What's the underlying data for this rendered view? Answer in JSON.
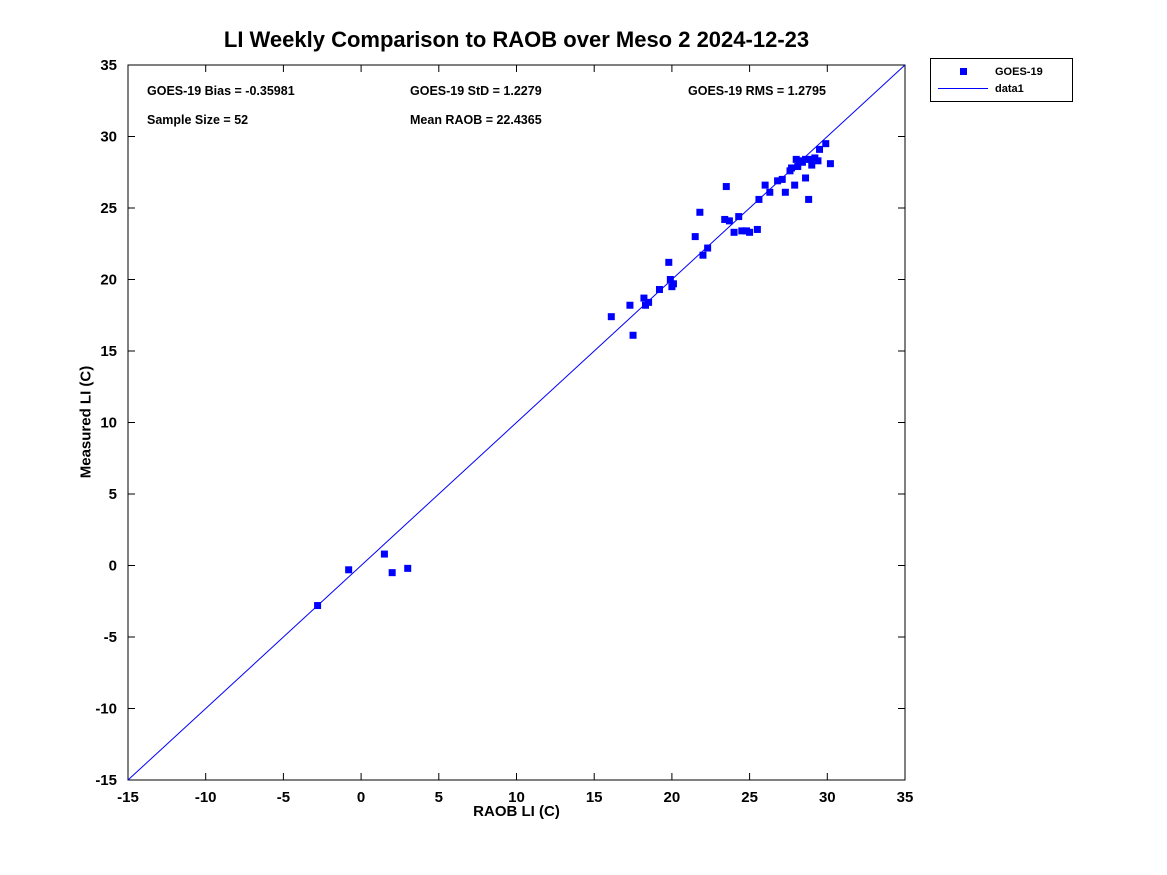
{
  "figure": {
    "title": "LI Weekly Comparison to RAOB over Meso 2 2024-12-23",
    "xlabel": "RAOB LI (C)",
    "ylabel": "Measured LI (C)"
  },
  "annotations": {
    "bias": "GOES-19 Bias = -0.35981",
    "std": "GOES-19 StD = 1.2279",
    "rms": "GOES-19 RMS = 1.2795",
    "sample_size": "Sample Size = 52",
    "mean_raob": "Mean RAOB = 22.4365"
  },
  "legend": {
    "entries": [
      {
        "label": "GOES-19",
        "type": "marker"
      },
      {
        "label": "data1",
        "type": "line"
      }
    ]
  },
  "colors": {
    "series": "#0000ff",
    "axis": "#000000"
  },
  "chart_data": {
    "type": "scatter",
    "title": "LI Weekly Comparison to RAOB over Meso 2 2024-12-23",
    "xlabel": "RAOB LI (C)",
    "ylabel": "Measured LI (C)",
    "xlim": [
      -15,
      35
    ],
    "ylim": [
      -15,
      35
    ],
    "xticks": [
      -15,
      -10,
      -5,
      0,
      5,
      10,
      15,
      20,
      25,
      30,
      35
    ],
    "yticks": [
      -15,
      -10,
      -5,
      0,
      5,
      10,
      15,
      20,
      25,
      30,
      35
    ],
    "grid": false,
    "legend_position": "outside-top-right",
    "stats": {
      "bias": -0.35981,
      "std": 1.2279,
      "rms": 1.2795,
      "sample_size": 52,
      "mean_raob": 22.4365
    },
    "series": [
      {
        "name": "data1",
        "type": "line",
        "color": "#0000ff",
        "points": [
          [
            -15,
            -15
          ],
          [
            35,
            35
          ]
        ]
      },
      {
        "name": "GOES-19",
        "type": "scatter",
        "marker": "square",
        "color": "#0000ff",
        "points": [
          [
            -2.8,
            -2.8
          ],
          [
            -0.8,
            -0.3
          ],
          [
            1.5,
            0.8
          ],
          [
            2.0,
            -0.5
          ],
          [
            3.0,
            -0.2
          ],
          [
            16.1,
            17.4
          ],
          [
            17.3,
            18.2
          ],
          [
            17.5,
            16.1
          ],
          [
            18.2,
            18.7
          ],
          [
            18.3,
            18.2
          ],
          [
            18.5,
            18.4
          ],
          [
            19.2,
            19.3
          ],
          [
            19.8,
            21.2
          ],
          [
            19.9,
            20.0
          ],
          [
            20.0,
            19.5
          ],
          [
            20.1,
            19.7
          ],
          [
            21.5,
            23.0
          ],
          [
            21.8,
            24.7
          ],
          [
            22.0,
            21.7
          ],
          [
            22.3,
            22.2
          ],
          [
            23.4,
            24.2
          ],
          [
            23.5,
            26.5
          ],
          [
            23.7,
            24.1
          ],
          [
            24.0,
            23.3
          ],
          [
            24.3,
            24.4
          ],
          [
            24.5,
            23.4
          ],
          [
            24.8,
            23.4
          ],
          [
            25.0,
            23.3
          ],
          [
            25.5,
            23.5
          ],
          [
            25.6,
            25.6
          ],
          [
            26.0,
            26.6
          ],
          [
            26.3,
            26.1
          ],
          [
            26.8,
            26.9
          ],
          [
            27.1,
            27.0
          ],
          [
            27.3,
            26.1
          ],
          [
            27.6,
            27.6
          ],
          [
            27.7,
            27.8
          ],
          [
            27.9,
            26.6
          ],
          [
            28.0,
            28.4
          ],
          [
            28.1,
            27.9
          ],
          [
            28.2,
            28.3
          ],
          [
            28.4,
            28.2
          ],
          [
            28.6,
            28.4
          ],
          [
            28.6,
            27.1
          ],
          [
            28.8,
            25.6
          ],
          [
            28.9,
            28.4
          ],
          [
            29.0,
            28.0
          ],
          [
            29.2,
            28.5
          ],
          [
            29.4,
            28.3
          ],
          [
            29.5,
            29.1
          ],
          [
            29.9,
            29.5
          ],
          [
            30.2,
            28.1
          ]
        ]
      }
    ]
  }
}
